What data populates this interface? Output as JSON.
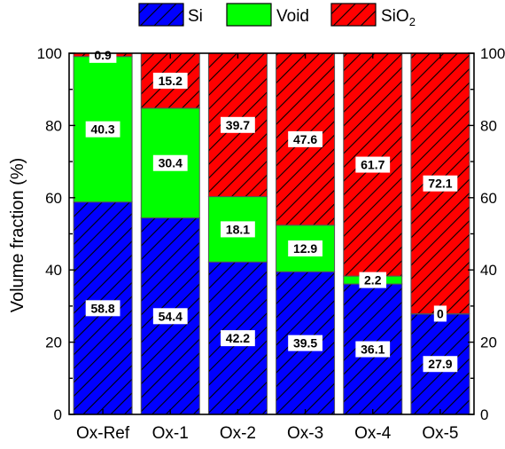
{
  "chart_data": {
    "type": "bar",
    "stacked": true,
    "categories": [
      "Ox-Ref",
      "Ox-1",
      "Ox-2",
      "Ox-3",
      "Ox-4",
      "Ox-5"
    ],
    "series": [
      {
        "name": "Si",
        "color": "#0000ff",
        "hatch": "diagonal",
        "values": [
          58.8,
          54.4,
          42.2,
          39.5,
          36.1,
          27.9
        ],
        "labels": [
          "58.8",
          "54.4",
          "42.2",
          "39.5",
          "36.1",
          "27.9"
        ]
      },
      {
        "name": "Void",
        "color": "#00ff00",
        "hatch": "none",
        "values": [
          40.3,
          30.4,
          18.1,
          12.9,
          2.2,
          0
        ],
        "labels": [
          "40.3",
          "30.4",
          "18.1",
          "12.9",
          "2.2",
          "0"
        ]
      },
      {
        "name": "SiO2",
        "color": "#ff0000",
        "hatch": "diagonal",
        "values": [
          0.9,
          15.2,
          39.7,
          47.6,
          61.7,
          72.1
        ],
        "labels": [
          "0.9",
          "15.2",
          "39.7",
          "47.6",
          "61.7",
          "72.1"
        ]
      }
    ],
    "legend": {
      "placement": "top",
      "items": [
        "Si",
        "Void",
        "SiO",
        "2"
      ]
    },
    "xlabel": "",
    "ylabel": "Volume fraction (%)",
    "ylim": [
      0,
      100
    ],
    "yticks": [
      "0",
      "20",
      "40",
      "60",
      "80",
      "100"
    ],
    "right_axis_ticks": [
      "0",
      "20",
      "40",
      "60",
      "80",
      "100"
    ],
    "grid": false
  }
}
